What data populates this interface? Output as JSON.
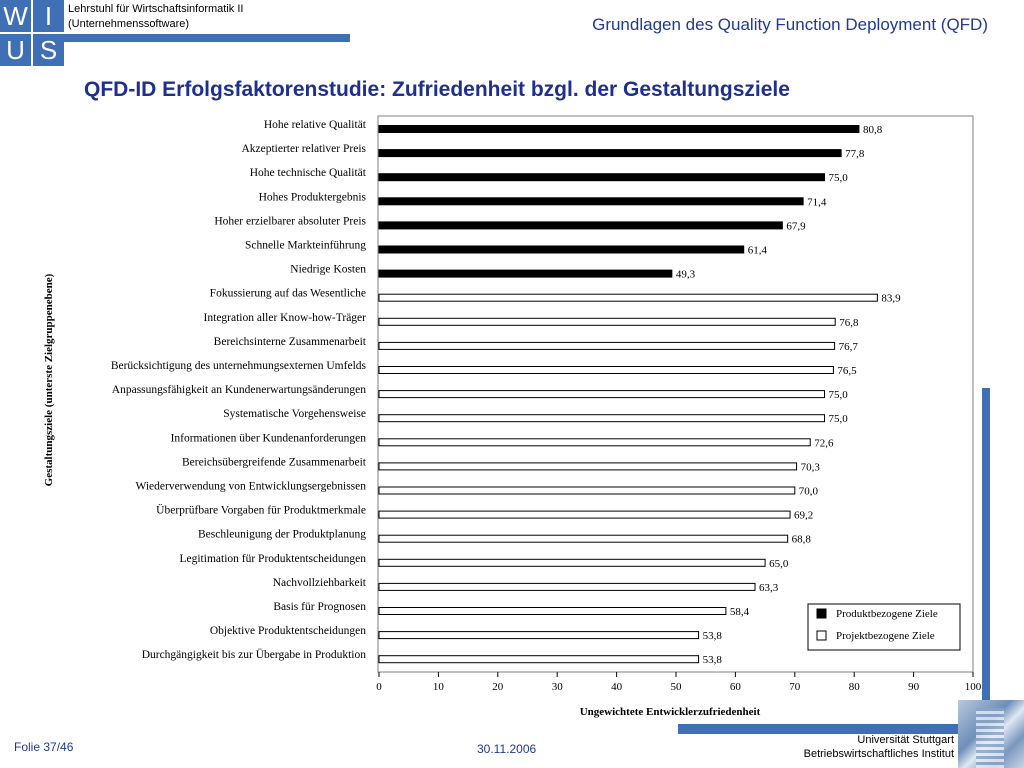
{
  "header": {
    "logo_letters": [
      "W",
      "I",
      "U",
      "S"
    ],
    "chair_line1": "Lehrstuhl für Wirtschaftsinformatik II",
    "chair_line2": "(Unternehmenssoftware)",
    "top_title": "Grundlagen des Quality Function Deployment (QFD)",
    "main_title": "QFD-ID Erfolgsfaktorenstudie: Zufriedenheit bzgl. der Gestaltungsziele"
  },
  "footer": {
    "slide": "Folie 37/46",
    "date": "30.11.2006",
    "uni_line1": "Universität Stuttgart",
    "uni_line2": "Betriebswirtschaftliches Institut"
  },
  "colors": {
    "accent": "#3f6fb5",
    "title": "#1f2f8f",
    "bar_product": "#000000",
    "bar_project": "#ffffff"
  },
  "chart_data": {
    "type": "bar",
    "orientation": "horizontal",
    "xlabel": "Ungewichtete Entwicklerzufriedenheit",
    "ylabel": "Gestaltungsziele (unterste Zielgruppenebene)",
    "xlim": [
      0,
      100
    ],
    "xticks": [
      0,
      10,
      20,
      30,
      40,
      50,
      60,
      70,
      80,
      90,
      100
    ],
    "grid": false,
    "legend_position": "bottom-right",
    "legend": [
      {
        "name": "Produktbezogene Ziele",
        "color": "#000000"
      },
      {
        "name": "Projektbezogene Ziele",
        "color": "#ffffff"
      }
    ],
    "bars": [
      {
        "label": "Hohe relative Qualität",
        "value": 80.8,
        "value_label": "80,8",
        "group": 0
      },
      {
        "label": "Akzeptierter relativer Preis",
        "value": 77.8,
        "value_label": "77,8",
        "group": 0
      },
      {
        "label": "Hohe technische Qualität",
        "value": 75.0,
        "value_label": "75,0",
        "group": 0
      },
      {
        "label": "Hohes Produktergebnis",
        "value": 71.4,
        "value_label": "71,4",
        "group": 0
      },
      {
        "label": "Hoher erzielbarer absoluter Preis",
        "value": 67.9,
        "value_label": "67,9",
        "group": 0
      },
      {
        "label": "Schnelle Markteinführung",
        "value": 61.4,
        "value_label": "61,4",
        "group": 0
      },
      {
        "label": "Niedrige Kosten",
        "value": 49.3,
        "value_label": "49,3",
        "group": 0
      },
      {
        "label": "Fokussierung auf das Wesentliche",
        "value": 83.9,
        "value_label": "83,9",
        "group": 1
      },
      {
        "label": "Integration aller Know-how-Träger",
        "value": 76.8,
        "value_label": "76,8",
        "group": 1
      },
      {
        "label": "Bereichsinterne Zusammenarbeit",
        "value": 76.7,
        "value_label": "76,7",
        "group": 1
      },
      {
        "label": "Berücksichtigung des unternehmungsexternen Umfelds",
        "value": 76.5,
        "value_label": "76,5",
        "group": 1
      },
      {
        "label": "Anpassungsfähigkeit  an Kundenerwartungsänderungen",
        "value": 75.0,
        "value_label": "75,0",
        "group": 1
      },
      {
        "label": "Systematische Vorgehensweise",
        "value": 75.0,
        "value_label": "75,0",
        "group": 1
      },
      {
        "label": "Informationen über Kundenanforderungen",
        "value": 72.6,
        "value_label": "72,6",
        "group": 1
      },
      {
        "label": "Bereichsübergreifende Zusammenarbeit",
        "value": 70.3,
        "value_label": "70,3",
        "group": 1
      },
      {
        "label": "Wiederverwendung von Entwicklungsergebnissen",
        "value": 70.0,
        "value_label": "70,0",
        "group": 1
      },
      {
        "label": "Überprüfbare Vorgaben für Produktmerkmale",
        "value": 69.2,
        "value_label": "69,2",
        "group": 1
      },
      {
        "label": "Beschleunigung der Produktplanung",
        "value": 68.8,
        "value_label": "68,8",
        "group": 1
      },
      {
        "label": "Legitimation für Produktentscheidungen",
        "value": 65.0,
        "value_label": "65,0",
        "group": 1
      },
      {
        "label": "Nachvollziehbarkeit",
        "value": 63.3,
        "value_label": "63,3",
        "group": 1
      },
      {
        "label": "Basis für Prognosen",
        "value": 58.4,
        "value_label": "58,4",
        "group": 1
      },
      {
        "label": "Objektive Produktentscheidungen",
        "value": 53.8,
        "value_label": "53,8",
        "group": 1
      },
      {
        "label": "Durchgängigkeit bis zur Übergabe in Produktion",
        "value": 53.8,
        "value_label": "53,8",
        "group": 1
      }
    ]
  }
}
